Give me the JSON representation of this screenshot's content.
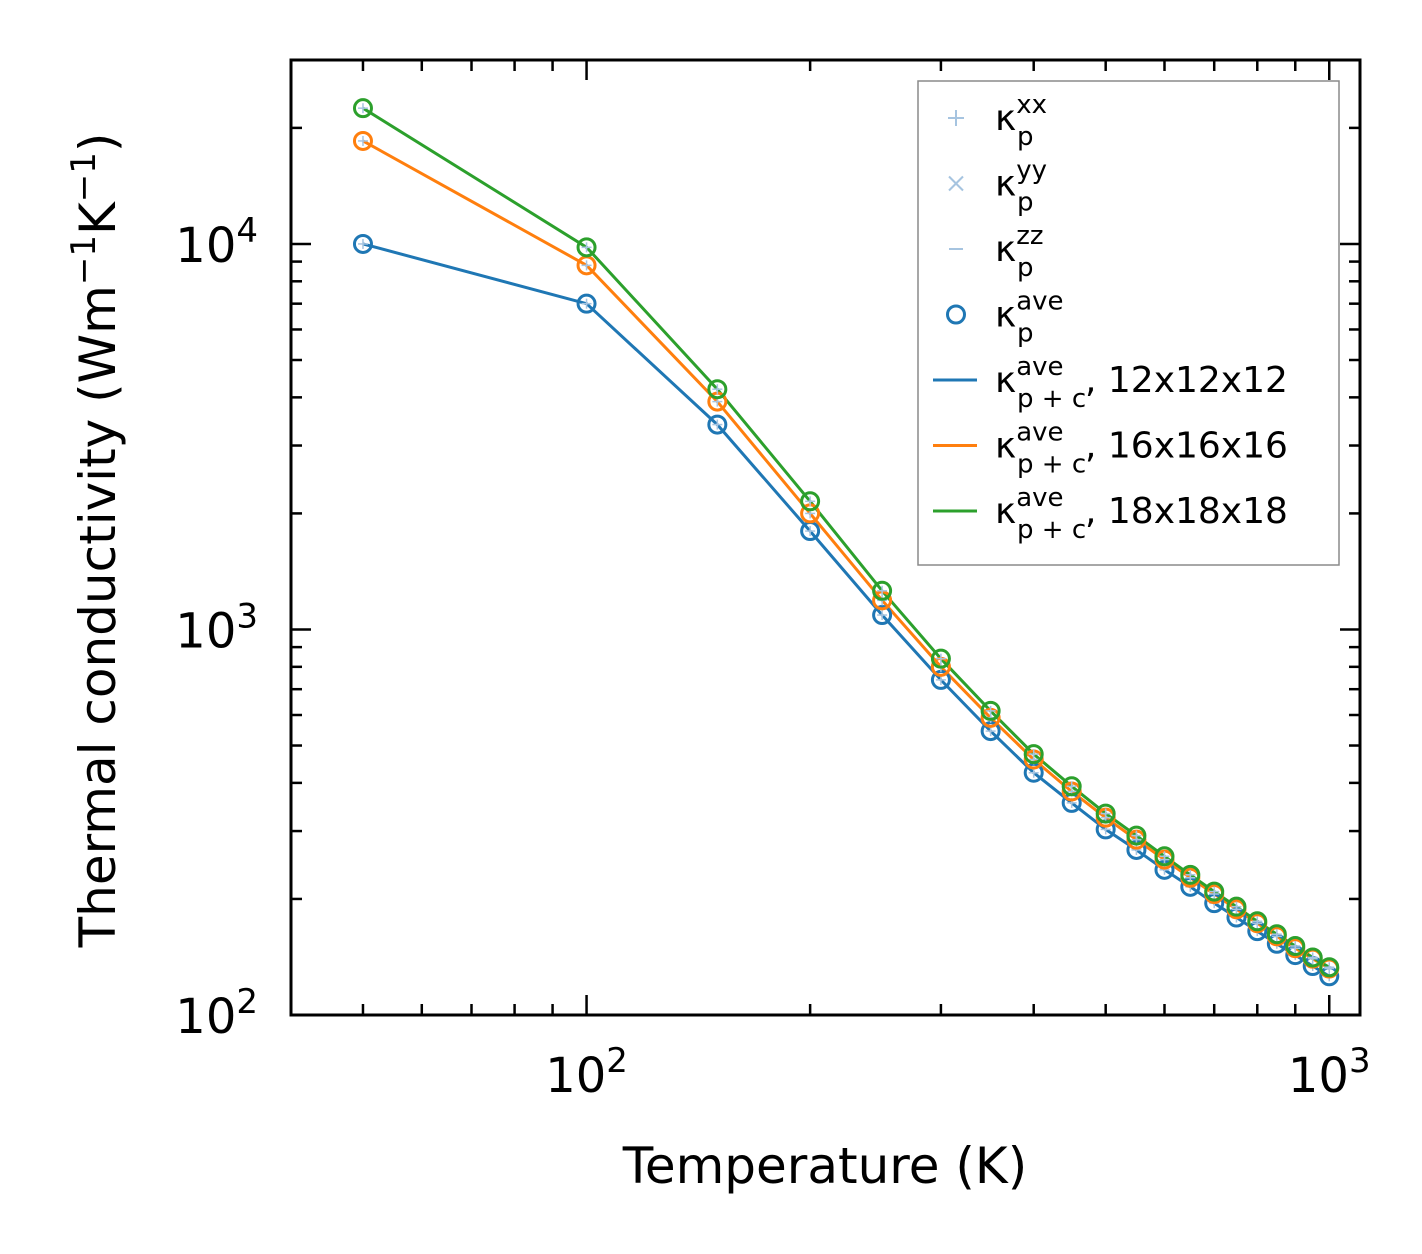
{
  "chart_data": {
    "type": "line",
    "title": "",
    "xlabel": "Temperature (K)",
    "ylabel_main": "Thermal conductivity (Wm",
    "ylabel_sup1": "−1",
    "ylabel_mid": "K",
    "ylabel_sup2": "−1",
    "ylabel_end": ")",
    "xscale": "log",
    "yscale": "log",
    "xlim": [
      40,
      1100
    ],
    "ylim": [
      100,
      30000
    ],
    "x_ticks": [
      {
        "value": 100,
        "base": "10",
        "exp": "2"
      },
      {
        "value": 1000,
        "base": "10",
        "exp": "3"
      }
    ],
    "y_ticks": [
      {
        "value": 100,
        "base": "10",
        "exp": "2"
      },
      {
        "value": 1000,
        "base": "10",
        "exp": "3"
      },
      {
        "value": 10000,
        "base": "10",
        "exp": "4"
      }
    ],
    "grid": false,
    "legend_position": "top-right",
    "x": [
      50,
      100,
      150,
      200,
      250,
      300,
      350,
      400,
      450,
      500,
      550,
      600,
      650,
      700,
      750,
      800,
      850,
      900,
      950,
      1000
    ],
    "series": [
      {
        "name": "12x12x12",
        "color": "#1f77b4",
        "values": [
          10000,
          7000,
          3400,
          1800,
          1090,
          740,
          545,
          425,
          355,
          303,
          268,
          238,
          215,
          195,
          179,
          165,
          153,
          143,
          134,
          126
        ]
      },
      {
        "name": "16x16x16",
        "color": "#ff7f0e",
        "values": [
          18500,
          8800,
          3900,
          2000,
          1190,
          800,
          590,
          460,
          380,
          325,
          285,
          253,
          227,
          206,
          188,
          173,
          160,
          149,
          140,
          132
        ]
      },
      {
        "name": "18x18x18",
        "color": "#2ca02c",
        "values": [
          22500,
          9800,
          4200,
          2150,
          1260,
          840,
          615,
          475,
          392,
          333,
          292,
          258,
          231,
          209,
          191,
          175,
          162,
          151,
          141,
          133
        ]
      }
    ],
    "legend": [
      {
        "kind": "plus",
        "sym": "κ",
        "sub": "p",
        "sup": "xx",
        "suffix": ""
      },
      {
        "kind": "x",
        "sym": "κ",
        "sub": "p",
        "sup": "yy",
        "suffix": ""
      },
      {
        "kind": "dash",
        "sym": "κ",
        "sub": "p",
        "sup": "zz",
        "suffix": ""
      },
      {
        "kind": "circle",
        "sym": "κ",
        "sub": "p",
        "sup": "ave",
        "suffix": ""
      },
      {
        "kind": "line",
        "series": 0,
        "sym": "κ",
        "sub": "p + c",
        "sup": "ave",
        "suffix": ", 12x12x12"
      },
      {
        "kind": "line",
        "series": 1,
        "sym": "κ",
        "sub": "p + c",
        "sup": "ave",
        "suffix": ", 16x16x16"
      },
      {
        "kind": "line",
        "series": 2,
        "sym": "κ",
        "sub": "p + c",
        "sup": "ave",
        "suffix": ", 18x18x18"
      }
    ],
    "component_marker_color": "#a6c4e0",
    "circle_marker_color": "#1f77b4"
  }
}
